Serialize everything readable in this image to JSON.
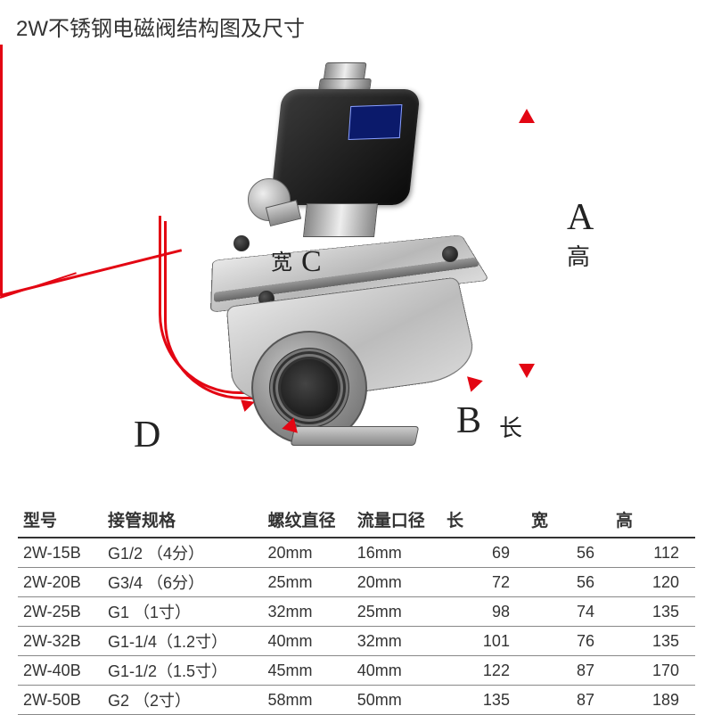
{
  "title": "2W不锈钢电磁阀结构图及尺寸",
  "dimensions": {
    "A": {
      "letter": "A",
      "name": "高"
    },
    "B": {
      "letter": "B",
      "name": "长"
    },
    "C": {
      "letter": "C",
      "name_prefix": "宽"
    },
    "D": {
      "letter": "D"
    }
  },
  "colors": {
    "arrow": "#e30613",
    "coil": "#0a0a0a",
    "coil_label": "#0b1a6b",
    "body_metal_light": "#e8e8e8",
    "body_metal_dark": "#b8b8b8",
    "table_border": "#333333",
    "row_border": "#888888",
    "text": "#333333",
    "background": "#ffffff"
  },
  "table": {
    "columns": [
      {
        "key": "model",
        "label": "型号",
        "class": "c-model",
        "align": "left"
      },
      {
        "key": "pipe",
        "label": "接管规格",
        "class": "c-pipe",
        "align": "left"
      },
      {
        "key": "thread",
        "label": "螺纹直径",
        "class": "c-thread",
        "align": "left"
      },
      {
        "key": "flow",
        "label": "流量口径",
        "class": "c-flow",
        "align": "left"
      },
      {
        "key": "length",
        "label": "长",
        "class": "c-len",
        "align": "right"
      },
      {
        "key": "width",
        "label": "宽",
        "class": "c-wid",
        "align": "right"
      },
      {
        "key": "height",
        "label": "高",
        "class": "c-hei",
        "align": "right"
      }
    ],
    "rows": [
      {
        "model": "2W-15B",
        "pipe": "G1/2 （4分）",
        "thread": "20mm",
        "flow": "16mm",
        "length": "69",
        "width": "56",
        "height": "112"
      },
      {
        "model": "2W-20B",
        "pipe": "G3/4 （6分）",
        "thread": "25mm",
        "flow": "20mm",
        "length": "72",
        "width": "56",
        "height": "120"
      },
      {
        "model": "2W-25B",
        "pipe": "G1   （1寸）",
        "thread": "32mm",
        "flow": "25mm",
        "length": "98",
        "width": "74",
        "height": "135"
      },
      {
        "model": "2W-32B",
        "pipe": "G1-1/4（1.2寸）",
        "thread": "40mm",
        "flow": "32mm",
        "length": "101",
        "width": "76",
        "height": "135"
      },
      {
        "model": "2W-40B",
        "pipe": "G1-1/2（1.5寸）",
        "thread": "45mm",
        "flow": "40mm",
        "length": "122",
        "width": "87",
        "height": "170"
      },
      {
        "model": "2W-50B",
        "pipe": "G2   （2寸）",
        "thread": "58mm",
        "flow": "50mm",
        "length": "135",
        "width": "87",
        "height": "189"
      }
    ]
  }
}
